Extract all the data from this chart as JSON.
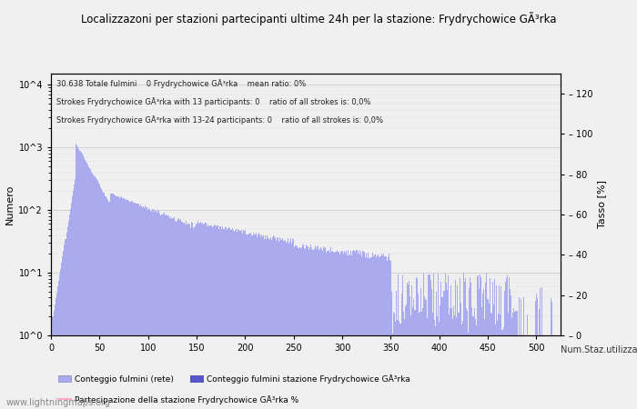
{
  "title": "Localizzazoni per stazioni partecipanti ultime 24h per la stazione: Frydrychowice GÃ³rka",
  "subtitle_lines": [
    "30.638 Totale fulmini    0 Frydrychowice GÃ³rka    mean ratio: 0%",
    "Strokes Frydrychowice GÃ³rka with 13 participants: 0    ratio of all strokes is: 0,0%",
    "Strokes Frydrychowice GÃ³rka with 13-24 participants: 0    ratio of all strokes is: 0,0%"
  ],
  "ylabel_left": "Numero",
  "ylabel_right": "Tasso [%]",
  "xlabel": "Num.Staz.utilizzate",
  "watermark": "www.lightningmaps.org",
  "bar_color_light": "#aaaaee",
  "bar_color_dark": "#5555cc",
  "line_color": "#ffaacc",
  "ylim_right": [
    0,
    130
  ],
  "xlim": [
    0,
    525
  ],
  "xticks": [
    0,
    50,
    100,
    150,
    200,
    250,
    300,
    350,
    400,
    450,
    500
  ],
  "yticks_right": [
    0,
    20,
    40,
    60,
    80,
    100,
    120
  ],
  "legend_entries": [
    "Conteggio fulmini (rete)",
    "Conteggio fulmini stazione Frydrychowice GÃ³rka",
    "Partecipazione della stazione Frydrychowice GÃ³rka %"
  ],
  "background_color": "#f0f0f0",
  "grid_color": "#cccccc"
}
